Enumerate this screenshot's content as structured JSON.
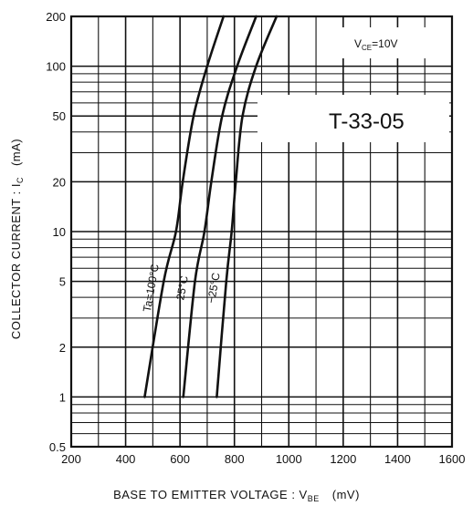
{
  "chart_data": {
    "type": "line",
    "xlabel": "BASE TO EMITTER VOLTAGE : V",
    "xlabel_sub": "BE",
    "xlabel_unit": "(mV)",
    "ylabel": "COLLECTOR CURRENT : I",
    "ylabel_sub": "C",
    "ylabel_unit": "(mA)",
    "xlim": [
      200,
      1600
    ],
    "ylim": [
      0.5,
      200
    ],
    "yscale": "log",
    "grid": true,
    "x_ticks": [
      200,
      400,
      600,
      800,
      1000,
      1200,
      1400,
      1600
    ],
    "x_tick_labels": [
      "200",
      "400",
      "600",
      "800",
      "1000",
      "1200",
      "1400",
      "1600"
    ],
    "y_ticks": [
      0.5,
      1,
      2,
      5,
      10,
      20,
      50,
      100,
      200
    ],
    "y_tick_labels": [
      "0.5",
      "1",
      "2",
      "5",
      "10",
      "20",
      "50",
      "100",
      "200"
    ],
    "condition": "V",
    "condition_sub": "CE",
    "condition_value": "=10V",
    "part_number": "T-33-05",
    "series": [
      {
        "name": "Ta=100°C",
        "x": [
          470,
          540,
          585,
          610,
          650,
          700,
          760
        ],
        "y": [
          1,
          5,
          10,
          20,
          50,
          100,
          200
        ]
      },
      {
        "name": "25°C",
        "x": [
          612,
          655,
          690,
          715,
          755,
          810,
          880
        ],
        "y": [
          1,
          5,
          10,
          20,
          50,
          100,
          200
        ]
      },
      {
        "name": "−25°C",
        "x": [
          735,
          770,
          790,
          805,
          830,
          880,
          955
        ],
        "y": [
          1,
          5,
          10,
          20,
          50,
          100,
          200
        ]
      }
    ]
  }
}
